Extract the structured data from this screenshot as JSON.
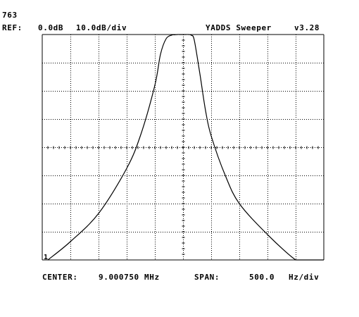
{
  "header": {
    "sweep_count": "763",
    "ref_label": "REF:",
    "ref_level": "0.0dB",
    "scale": "10.0dB/div",
    "app_title": "YADDS Sweeper",
    "version": "v3.28"
  },
  "footer": {
    "center_label": "CENTER:",
    "center_value": "9.000750 MHz",
    "span_label": "SPAN:",
    "span_value": "500.0",
    "span_unit": "Hz/div"
  },
  "marker": {
    "label": "1"
  },
  "colors": {
    "trace": "#000000",
    "grid": "#000000",
    "background": "#ffffff"
  },
  "chart_data": {
    "type": "line",
    "title": "YADDS Sweeper",
    "x_unit": "Hz offset from center",
    "y_unit": "dB",
    "xlim": [
      -2500,
      2500
    ],
    "ylim": [
      -80,
      0
    ],
    "grid": true,
    "x_divisions": 10,
    "y_divisions": 8,
    "series": [
      {
        "name": "",
        "x": [
          -2400,
          -2000,
          -1500,
          -1000,
          -750,
          -500,
          -400,
          -300,
          -200,
          -150,
          -100,
          -50,
          0,
          50,
          100,
          150,
          200,
          300,
          400,
          500,
          750,
          1000,
          1500,
          2000,
          2150,
          2500
        ],
        "y": [
          -80,
          -73.5,
          -63.5,
          -47.5,
          -35.5,
          -18,
          -7,
          -1.5,
          -0.2,
          -0.1,
          0,
          0,
          0,
          0,
          0,
          -0.3,
          -2,
          -14,
          -27,
          -36,
          -50,
          -60,
          -71,
          -80,
          -80,
          -80
        ]
      }
    ]
  }
}
